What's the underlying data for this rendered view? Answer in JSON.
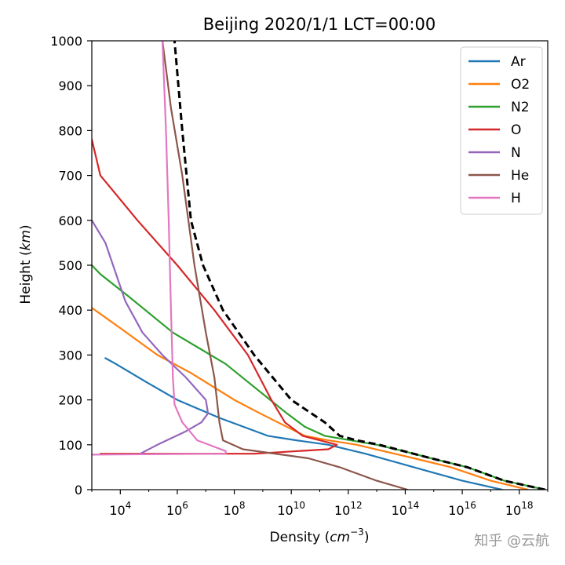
{
  "chart_data": {
    "type": "line",
    "title": "Beijing  2020/1/1  LCT=00:00",
    "xlabel": "Density ",
    "xlabel_unit": "cm",
    "xlabel_exp": "−3",
    "ylabel": "Height ",
    "ylabel_unit": "km",
    "x_scale": "log",
    "xlim": [
      1000,
      1e+19
    ],
    "ylim": [
      0,
      1000
    ],
    "x_ticks": [
      {
        "value": 10000.0,
        "base": "10",
        "exp": "4"
      },
      {
        "value": 1000000.0,
        "base": "10",
        "exp": "6"
      },
      {
        "value": 100000000.0,
        "base": "10",
        "exp": "8"
      },
      {
        "value": 10000000000.0,
        "base": "10",
        "exp": "10"
      },
      {
        "value": 1000000000000.0,
        "base": "10",
        "exp": "12"
      },
      {
        "value": 100000000000000.0,
        "base": "10",
        "exp": "14"
      },
      {
        "value": 1e+16,
        "base": "10",
        "exp": "16"
      },
      {
        "value": 1e+18,
        "base": "10",
        "exp": "18"
      }
    ],
    "y_ticks": [
      0,
      100,
      200,
      300,
      400,
      500,
      600,
      700,
      800,
      900,
      1000
    ],
    "grid": false,
    "legend_position": "top-right",
    "series": [
      {
        "name": "Ar",
        "color": "#1f77b4",
        "dashed": false,
        "points": [
          [
            2.5e+17,
            0
          ],
          [
            1e+16,
            20
          ],
          [
            200000000000000.0,
            50
          ],
          [
            4000000000000.0,
            80
          ],
          [
            200000000000.0,
            100
          ],
          [
            15000000000.0,
            110
          ],
          [
            1500000000.0,
            120
          ],
          [
            30000000.0,
            160
          ],
          [
            1000000.0,
            200
          ],
          [
            80000.0,
            240
          ],
          [
            7000.0,
            280
          ],
          [
            3000.0,
            293
          ]
        ]
      },
      {
        "name": "O2",
        "color": "#ff7f0e",
        "dashed": false,
        "points": [
          [
            2e+18,
            0
          ],
          [
            1e+17,
            20
          ],
          [
            4000000000000000.0,
            50
          ],
          [
            200000000000000.0,
            70
          ],
          [
            20000000000000.0,
            85
          ],
          [
            2000000000000.0,
            100
          ],
          [
            200000000000.0,
            110
          ],
          [
            30000000000.0,
            120
          ],
          [
            10000000000.0,
            135
          ],
          [
            800000000.0,
            170
          ],
          [
            100000000.0,
            200
          ],
          [
            3000000.0,
            260
          ],
          [
            200000.0,
            300
          ],
          [
            10000.0,
            360
          ],
          [
            1000.0,
            405
          ]
        ]
      },
      {
        "name": "N2",
        "color": "#2ca02c",
        "dashed": false,
        "points": [
          [
            8e+18,
            0
          ],
          [
            3e+17,
            20
          ],
          [
            1.5e+16,
            50
          ],
          [
            800000000000000.0,
            70
          ],
          [
            100000000000000.0,
            85
          ],
          [
            10000000000000.0,
            100
          ],
          [
            1200000000000.0,
            110
          ],
          [
            150000000000.0,
            120
          ],
          [
            30000000000.0,
            140
          ],
          [
            7000000000.0,
            170
          ],
          [
            300000000.0,
            240
          ],
          [
            50000000.0,
            280
          ],
          [
            700000.0,
            350
          ],
          [
            20000.0,
            430
          ],
          [
            2000.0,
            480
          ],
          [
            1000.0,
            500
          ]
        ]
      },
      {
        "name": "O",
        "color": "#d62728",
        "dashed": false,
        "points": [
          [
            2000.0,
            80
          ],
          [
            500000000.0,
            80
          ],
          [
            200000000000.0,
            90
          ],
          [
            400000000000.0,
            100
          ],
          [
            100000000000.0,
            110
          ],
          [
            25000000000.0,
            120
          ],
          [
            6000000000.0,
            150
          ],
          [
            2000000000.0,
            200
          ],
          [
            300000000.0,
            300
          ],
          [
            20000000.0,
            400
          ],
          [
            1000000.0,
            500
          ],
          [
            40000.0,
            600
          ],
          [
            2000.0,
            700
          ],
          [
            1000.0,
            780
          ]
        ]
      },
      {
        "name": "N",
        "color": "#9467bd",
        "dashed": false,
        "points": [
          [
            50000.0,
            80
          ],
          [
            200000.0,
            100
          ],
          [
            2000000.0,
            130
          ],
          [
            7000000.0,
            150
          ],
          [
            12000000.0,
            170
          ],
          [
            10000000.0,
            200
          ],
          [
            2000000.0,
            250
          ],
          [
            300000.0,
            300
          ],
          [
            60000.0,
            350
          ],
          [
            15000.0,
            420
          ],
          [
            3000.0,
            550
          ],
          [
            1000.0,
            600
          ]
        ]
      },
      {
        "name": "He",
        "color": "#8c564b",
        "dashed": false,
        "points": [
          [
            120000000000000.0,
            0
          ],
          [
            10000000000000.0,
            20
          ],
          [
            500000000000.0,
            50
          ],
          [
            40000000000.0,
            70
          ],
          [
            200000000.0,
            90
          ],
          [
            40000000.0,
            110
          ],
          [
            30000000.0,
            150
          ],
          [
            20000000.0,
            250
          ],
          [
            10000000.0,
            350
          ],
          [
            4000000.0,
            500
          ],
          [
            1500000.0,
            700
          ],
          [
            600000.0,
            850
          ],
          [
            300000.0,
            1000
          ]
        ]
      },
      {
        "name": "H",
        "color": "#e377c2",
        "dashed": false,
        "points": [
          [
            1000.0,
            78
          ],
          [
            50000000.0,
            80
          ],
          [
            50000000.0,
            86
          ],
          [
            5000000.0,
            110
          ],
          [
            1500000.0,
            150
          ],
          [
            800000.0,
            190
          ],
          [
            700000.0,
            250
          ],
          [
            600000.0,
            400
          ],
          [
            500000.0,
            600
          ],
          [
            400000.0,
            800
          ],
          [
            300000.0,
            1000
          ]
        ]
      },
      {
        "name": "",
        "color": "#000000",
        "dashed": true,
        "points": [
          [
            8e+18,
            0
          ],
          [
            3e+17,
            20
          ],
          [
            1.5e+16,
            50
          ],
          [
            800000000000000.0,
            70
          ],
          [
            100000000000000.0,
            85
          ],
          [
            12000000000000.0,
            100
          ],
          [
            2000000000000.0,
            110
          ],
          [
            500000000000.0,
            120
          ],
          [
            150000000000.0,
            150
          ],
          [
            10000000000.0,
            200
          ],
          [
            500000000.0,
            300
          ],
          [
            40000000.0,
            400
          ],
          [
            8000000.0,
            500
          ],
          [
            3000000.0,
            600
          ],
          [
            1500000.0,
            800
          ],
          [
            800000.0,
            1000
          ]
        ]
      }
    ]
  },
  "watermark": "知乎 @云航"
}
